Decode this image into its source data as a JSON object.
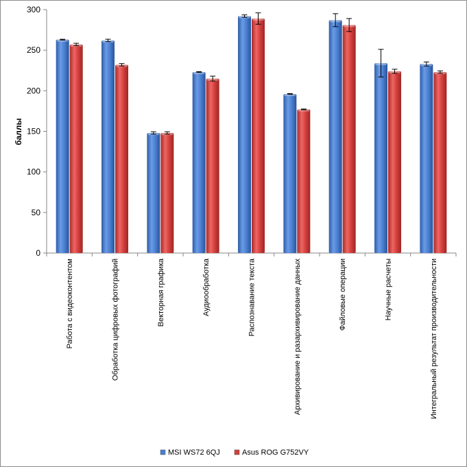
{
  "chart_data": {
    "type": "bar",
    "title": "",
    "xlabel": "",
    "ylabel": "баллы",
    "ylim": [
      0,
      300
    ],
    "yticks": [
      0,
      50,
      100,
      150,
      200,
      250,
      300
    ],
    "grid": false,
    "legend": "bottom",
    "categories": [
      "Работа с видеоконтентом",
      "Обработка цифровых фотографий",
      "Векторная графика",
      "Аудиообработка",
      "Распознавание текста",
      "Архивирование и разархивирование данных",
      "Файловые операции",
      "Научные расчеты",
      "Интегральный результат производительности"
    ],
    "series": [
      {
        "name": "MSI WS72 6QJ",
        "color": "#4a7fd0",
        "values": [
          263,
          262,
          148,
          223,
          292,
          196,
          287,
          234,
          233
        ],
        "errors": [
          0.5,
          1.5,
          1.5,
          0.5,
          1.5,
          0.5,
          8,
          17,
          2.5
        ]
      },
      {
        "name": "Asus ROG G752VY",
        "color": "#d23f3c",
        "values": [
          257,
          232,
          148,
          215,
          289,
          177,
          281,
          224,
          223
        ],
        "errors": [
          1.5,
          1.5,
          1.5,
          3,
          7,
          0.5,
          8,
          2.5,
          1.5
        ]
      }
    ]
  }
}
